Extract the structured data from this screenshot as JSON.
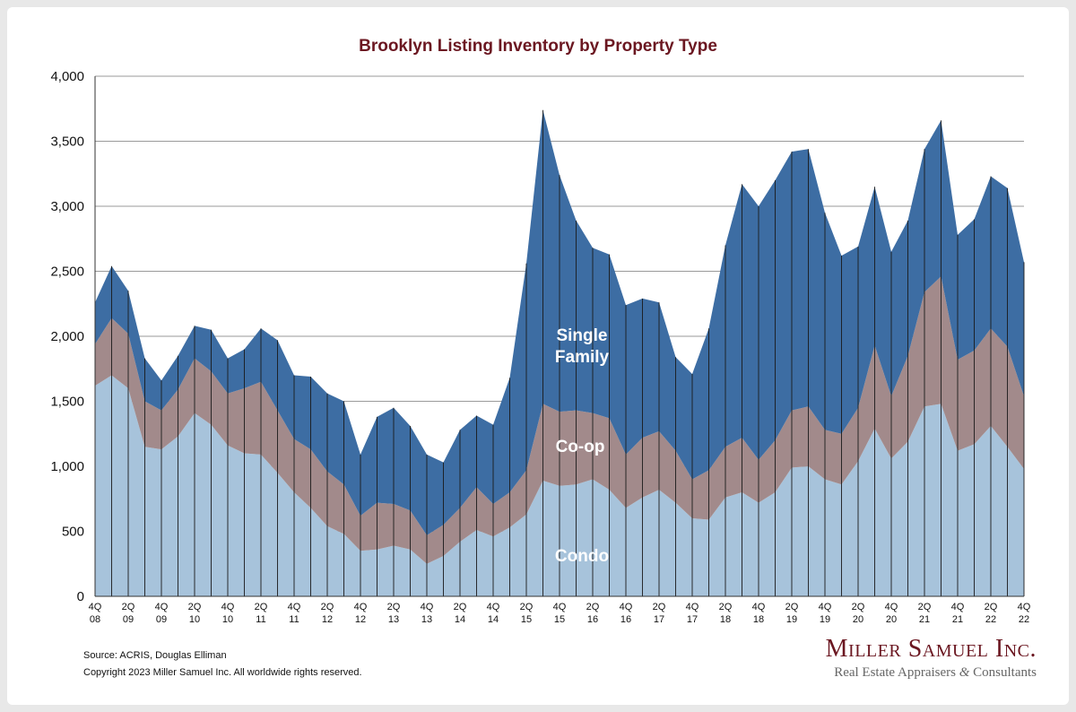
{
  "chart_data": {
    "type": "area",
    "stacked": true,
    "title": "Brooklyn Listing Inventory by Property Type",
    "xlabel": "",
    "ylabel": "",
    "ylim": [
      0,
      4000
    ],
    "yticks": [
      0,
      500,
      1000,
      1500,
      2000,
      2500,
      3000,
      3500,
      4000
    ],
    "ytick_labels": [
      "0",
      "500",
      "1,000",
      "1,500",
      "2,000",
      "2,500",
      "3,000",
      "3,500",
      "4,000"
    ],
    "grid": true,
    "x": [
      "4Q08",
      "1Q09",
      "2Q09",
      "3Q09",
      "4Q09",
      "1Q10",
      "2Q10",
      "3Q10",
      "4Q10",
      "1Q11",
      "2Q11",
      "3Q11",
      "4Q11",
      "1Q12",
      "2Q12",
      "3Q12",
      "4Q12",
      "1Q13",
      "2Q13",
      "3Q13",
      "4Q13",
      "1Q14",
      "2Q14",
      "3Q14",
      "4Q14",
      "1Q15",
      "2Q15",
      "3Q15",
      "4Q15",
      "1Q16",
      "2Q16",
      "3Q16",
      "4Q16",
      "1Q17",
      "2Q17",
      "3Q17",
      "4Q17",
      "1Q18",
      "2Q18",
      "3Q18",
      "4Q18",
      "1Q19",
      "2Q19",
      "3Q19",
      "4Q19",
      "1Q20",
      "2Q20",
      "3Q20",
      "4Q20",
      "1Q21",
      "2Q21",
      "3Q21",
      "4Q21",
      "1Q22",
      "2Q22",
      "3Q22",
      "4Q22"
    ],
    "x_tick_labels": [
      {
        "index": 0,
        "line1": "4Q",
        "line2": "08"
      },
      {
        "index": 2,
        "line1": "2Q",
        "line2": "09"
      },
      {
        "index": 4,
        "line1": "4Q",
        "line2": "09"
      },
      {
        "index": 6,
        "line1": "2Q",
        "line2": "10"
      },
      {
        "index": 8,
        "line1": "4Q",
        "line2": "10"
      },
      {
        "index": 10,
        "line1": "2Q",
        "line2": "11"
      },
      {
        "index": 12,
        "line1": "4Q",
        "line2": "11"
      },
      {
        "index": 14,
        "line1": "2Q",
        "line2": "12"
      },
      {
        "index": 16,
        "line1": "4Q",
        "line2": "12"
      },
      {
        "index": 18,
        "line1": "2Q",
        "line2": "13"
      },
      {
        "index": 20,
        "line1": "4Q",
        "line2": "13"
      },
      {
        "index": 22,
        "line1": "2Q",
        "line2": "14"
      },
      {
        "index": 24,
        "line1": "4Q",
        "line2": "14"
      },
      {
        "index": 26,
        "line1": "2Q",
        "line2": "15"
      },
      {
        "index": 28,
        "line1": "4Q",
        "line2": "15"
      },
      {
        "index": 30,
        "line1": "2Q",
        "line2": "16"
      },
      {
        "index": 32,
        "line1": "4Q",
        "line2": "16"
      },
      {
        "index": 34,
        "line1": "2Q",
        "line2": "17"
      },
      {
        "index": 36,
        "line1": "4Q",
        "line2": "17"
      },
      {
        "index": 38,
        "line1": "2Q",
        "line2": "18"
      },
      {
        "index": 40,
        "line1": "4Q",
        "line2": "18"
      },
      {
        "index": 42,
        "line1": "2Q",
        "line2": "19"
      },
      {
        "index": 44,
        "line1": "4Q",
        "line2": "19"
      },
      {
        "index": 46,
        "line1": "2Q",
        "line2": "20"
      },
      {
        "index": 48,
        "line1": "4Q",
        "line2": "20"
      },
      {
        "index": 50,
        "line1": "2Q",
        "line2": "21"
      },
      {
        "index": 52,
        "line1": "4Q",
        "line2": "21"
      },
      {
        "index": 54,
        "line1": "2Q",
        "line2": "22"
      },
      {
        "index": 56,
        "line1": "4Q",
        "line2": "22"
      }
    ],
    "series": [
      {
        "name": "Condo",
        "color": "#a7c3db",
        "values": [
          1620,
          1700,
          1600,
          1150,
          1130,
          1230,
          1410,
          1320,
          1160,
          1100,
          1090,
          950,
          800,
          680,
          540,
          480,
          350,
          360,
          390,
          360,
          250,
          310,
          420,
          510,
          460,
          530,
          630,
          890,
          850,
          860,
          900,
          820,
          680,
          760,
          820,
          720,
          600,
          590,
          760,
          800,
          720,
          800,
          990,
          1000,
          900,
          860,
          1040,
          1290,
          1060,
          1190,
          1460,
          1480,
          1120,
          1170,
          1310,
          1150,
          980
        ]
      },
      {
        "name": "Co-op",
        "color": "#a28a8b",
        "values": [
          320,
          440,
          420,
          350,
          300,
          360,
          420,
          410,
          400,
          500,
          560,
          480,
          410,
          450,
          420,
          380,
          270,
          360,
          320,
          300,
          220,
          240,
          260,
          330,
          250,
          270,
          340,
          590,
          570,
          570,
          510,
          550,
          410,
          460,
          450,
          400,
          300,
          380,
          390,
          420,
          330,
          400,
          440,
          460,
          380,
          390,
          410,
          640,
          480,
          660,
          880,
          980,
          700,
          720,
          750,
          770,
          560
        ]
      },
      {
        "name": "Single Family",
        "color": "#3d6da3",
        "values": [
          320,
          400,
          330,
          330,
          230,
          260,
          250,
          320,
          270,
          300,
          410,
          540,
          490,
          560,
          600,
          640,
          470,
          660,
          740,
          650,
          620,
          480,
          600,
          550,
          610,
          880,
          1590,
          2260,
          1820,
          1460,
          1270,
          1260,
          1150,
          1070,
          990,
          720,
          810,
          1090,
          1550,
          1950,
          1950,
          2000,
          1990,
          1980,
          1670,
          1370,
          1240,
          1220,
          1110,
          1040,
          1100,
          1200,
          960,
          1010,
          1170,
          1220,
          1030
        ]
      }
    ],
    "annotations": [
      {
        "text_lines": [
          "Single",
          "Family"
        ],
        "series": "Single Family"
      },
      {
        "text_lines": [
          "Co-op"
        ],
        "series": "Co-op"
      },
      {
        "text_lines": [
          "Condo"
        ],
        "series": "Condo"
      }
    ]
  },
  "footer": {
    "source": "Source: ACRIS, Douglas Elliman",
    "copyright": "Copyright 2023 Miller Samuel Inc.  All worldwide rights reserved."
  },
  "brand": {
    "name": "Miller Samuel Inc.",
    "tagline_part1": "Real Estate Appraisers ",
    "tagline_amp": "&",
    "tagline_part2": " Consultants"
  }
}
